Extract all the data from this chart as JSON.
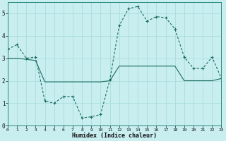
{
  "xlabel": "Humidex (Indice chaleur)",
  "background_color": "#c8eef0",
  "grid_color": "#aadddd",
  "line_color": "#1a6b60",
  "xlim": [
    0,
    23
  ],
  "ylim": [
    0,
    5.5
  ],
  "xtick_labels": [
    "0",
    "1",
    "2",
    "3",
    "4",
    "5",
    "6",
    "7",
    "8",
    "9",
    "10",
    "11",
    "12",
    "13",
    "14",
    "15",
    "16",
    "17",
    "18",
    "19",
    "20",
    "21",
    "22",
    "23"
  ],
  "ytick_labels": [
    "0",
    "1",
    "2",
    "3",
    "4",
    "5"
  ],
  "line1_x": [
    0,
    1,
    2,
    3,
    4,
    5,
    6,
    7,
    8,
    9,
    10,
    11,
    12,
    13,
    14,
    15,
    16,
    17,
    18,
    19,
    20,
    21,
    22,
    23
  ],
  "line1_y": [
    3.4,
    3.6,
    3.0,
    3.05,
    1.1,
    1.0,
    1.3,
    1.3,
    0.35,
    0.4,
    0.5,
    2.05,
    4.45,
    5.2,
    5.3,
    4.65,
    4.85,
    4.8,
    4.3,
    3.05,
    2.55,
    2.55,
    3.05,
    2.1
  ],
  "line2_x": [
    0,
    1,
    2,
    3,
    4,
    5,
    6,
    7,
    8,
    9,
    10,
    11,
    12,
    13,
    14,
    15,
    16,
    17,
    18,
    19,
    20,
    21,
    22,
    23
  ],
  "line2_y": [
    3.0,
    3.0,
    2.95,
    2.9,
    1.95,
    1.95,
    1.95,
    1.95,
    1.95,
    1.95,
    1.95,
    2.0,
    2.65,
    2.65,
    2.65,
    2.65,
    2.65,
    2.65,
    2.65,
    2.0,
    2.0,
    2.0,
    2.0,
    2.1
  ]
}
